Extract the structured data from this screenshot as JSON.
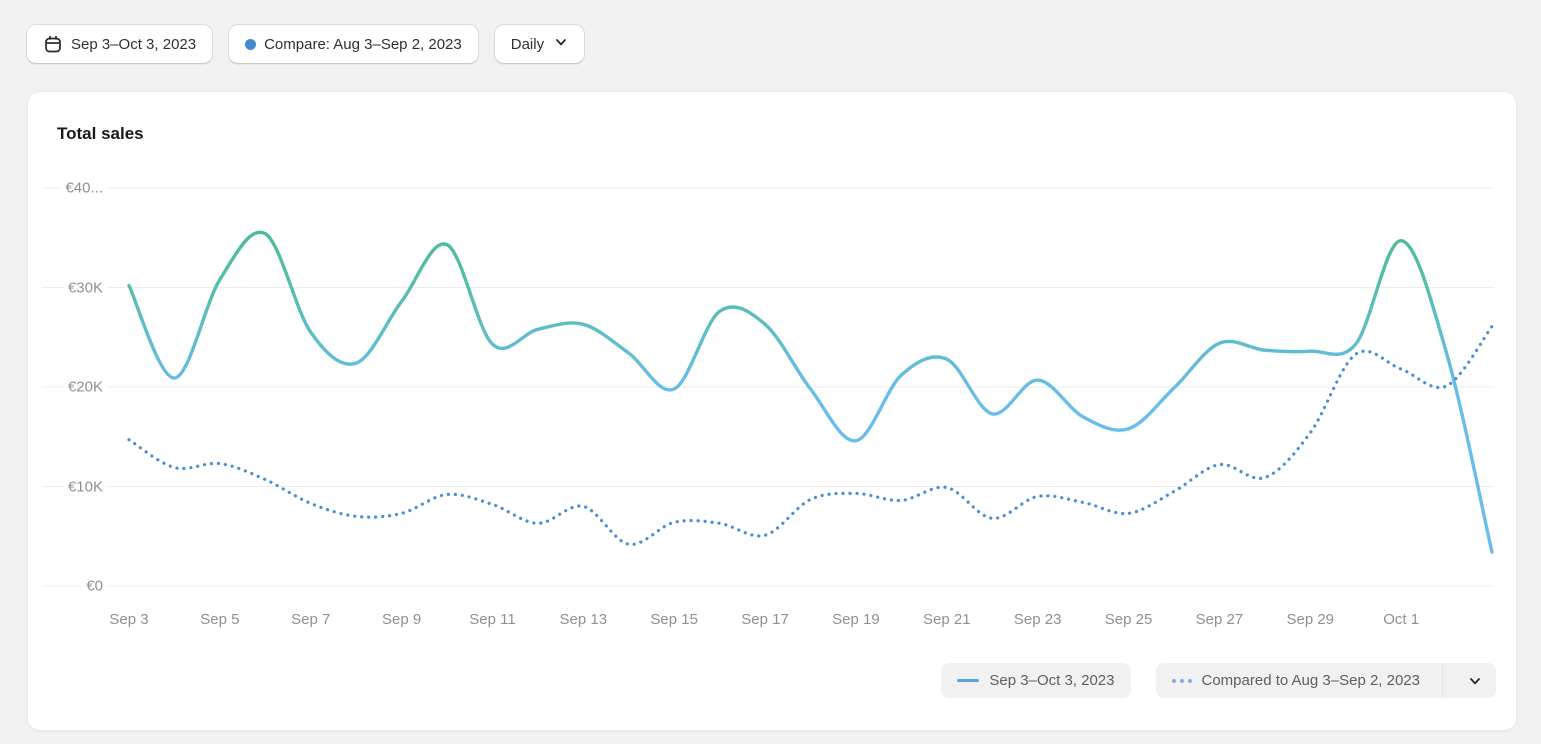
{
  "toolbar": {
    "date_range_button": {
      "label": "Sep 3–Oct 3, 2023",
      "icon": "calendar-icon"
    },
    "compare_button": {
      "label": "Compare: Aug 3–Sep 2, 2023",
      "dot_color": "#4289d3"
    },
    "granularity_button": {
      "label": "Daily",
      "icon": "chevron-down-icon"
    }
  },
  "card": {
    "title": "Total sales",
    "legend": {
      "primary": {
        "label": "Sep 3–Oct 3, 2023",
        "mark": "solid-line",
        "mark_color": "#55a3e3"
      },
      "comparison": {
        "label": "Compared to Aug 3–Sep 2, 2023",
        "mark": "dotted-line",
        "mark_color": "#7fadde"
      }
    }
  },
  "colors": {
    "page_bg": "#f2f2f2",
    "card_bg": "#ffffff",
    "gridline": "#ececec",
    "axis_text": "#8c9196",
    "solid_line_gradient_top": "#4cbd8d",
    "solid_line_gradient_bottom": "#68bdea",
    "dotted_line": "#4a8fd4"
  },
  "chart_data": {
    "type": "line",
    "title": "Total sales",
    "currency": "EUR",
    "grid": "horizontal",
    "legend_position": "bottom-right",
    "ylim": [
      0,
      40000
    ],
    "y_ticks": [
      {
        "label": "€0",
        "value": 0
      },
      {
        "label": "€10K",
        "value": 10000
      },
      {
        "label": "€20K",
        "value": 20000
      },
      {
        "label": "€30K",
        "value": 30000
      },
      {
        "label": "€40...",
        "value": 40000
      }
    ],
    "x": [
      "Sep 3",
      "Sep 4",
      "Sep 5",
      "Sep 6",
      "Sep 7",
      "Sep 8",
      "Sep 9",
      "Sep 10",
      "Sep 11",
      "Sep 12",
      "Sep 13",
      "Sep 14",
      "Sep 15",
      "Sep 16",
      "Sep 17",
      "Sep 18",
      "Sep 19",
      "Sep 20",
      "Sep 21",
      "Sep 22",
      "Sep 23",
      "Sep 24",
      "Sep 25",
      "Sep 26",
      "Sep 27",
      "Sep 28",
      "Sep 29",
      "Sep 30",
      "Oct 1",
      "Oct 2",
      "Oct 3"
    ],
    "x_tick_labels": [
      "Sep 3",
      "Sep 5",
      "Sep 7",
      "Sep 9",
      "Sep 11",
      "Sep 13",
      "Sep 15",
      "Sep 17",
      "Sep 19",
      "Sep 21",
      "Sep 23",
      "Sep 25",
      "Sep 27",
      "Sep 29",
      "Oct 1"
    ],
    "x_tick_indices": [
      0,
      2,
      4,
      6,
      8,
      10,
      12,
      14,
      16,
      18,
      20,
      22,
      24,
      26,
      28
    ],
    "series": [
      {
        "name": "Sep 3–Oct 3, 2023",
        "style": "solid",
        "values": [
          30200,
          20900,
          30800,
          35400,
          25500,
          22400,
          28600,
          34300,
          24300,
          25800,
          26300,
          23400,
          19800,
          27600,
          26300,
          19800,
          14600,
          21200,
          22800,
          17300,
          20700,
          17000,
          15800,
          19900,
          24400,
          23700,
          23600,
          24300,
          34700,
          23400,
          3400
        ]
      },
      {
        "name": "Compared to Aug 3–Sep 2, 2023",
        "style": "dotted",
        "values": [
          14700,
          11900,
          12300,
          10700,
          8300,
          7000,
          7300,
          9200,
          8200,
          6300,
          8000,
          4200,
          6400,
          6300,
          5100,
          8700,
          9300,
          8600,
          9900,
          6800,
          9000,
          8400,
          7300,
          9500,
          12200,
          10900,
          15400,
          23300,
          21800,
          20100,
          26100
        ]
      }
    ]
  }
}
